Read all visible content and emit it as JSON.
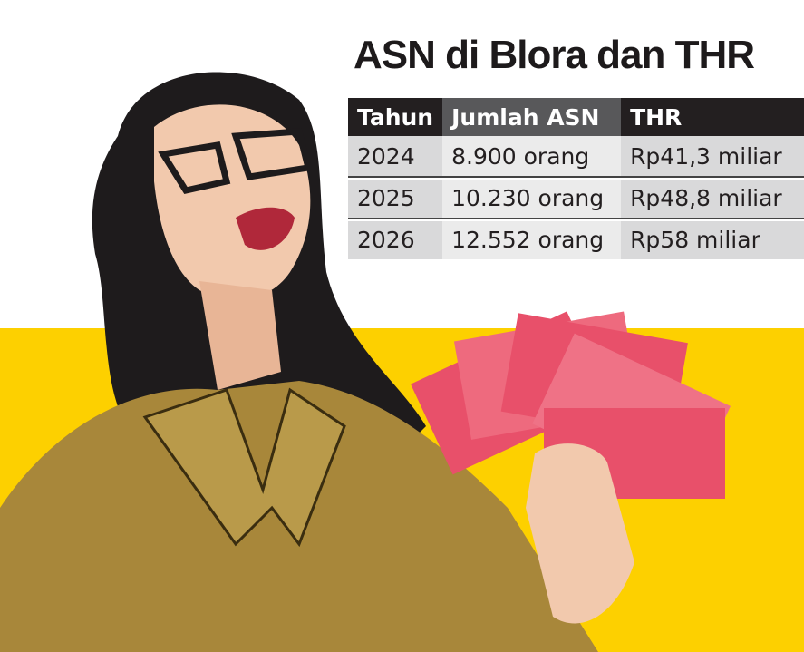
{
  "title": "ASN di Blora dan THR",
  "table": {
    "headers": [
      "Tahun",
      "Jumlah ASN",
      "THR"
    ],
    "rows": [
      [
        "2024",
        "8.900 orang",
        "Rp41,3 miliar"
      ],
      [
        "2025",
        "10.230 orang",
        "Rp48,8 miliar"
      ],
      [
        "2026",
        "12.552 orang",
        "Rp58 miliar"
      ]
    ]
  },
  "colors": {
    "background_band": "#fdd000",
    "header_dark": "#231f20",
    "header_mid": "#58585a",
    "note_pink": "#e8506a"
  }
}
